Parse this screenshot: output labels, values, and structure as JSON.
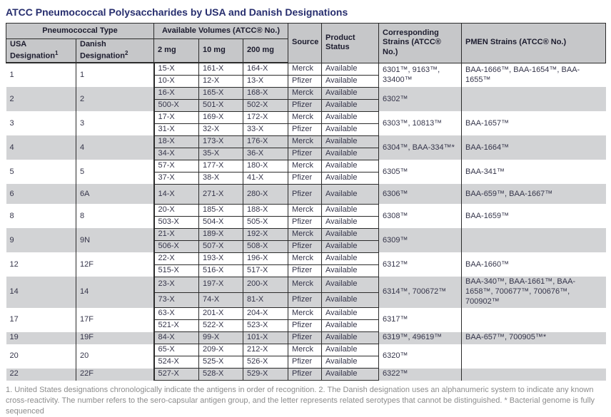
{
  "title": "ATCC Pneumococcal Polysaccharides by USA and Danish Designations",
  "header": {
    "pneumococcal_type": "Pneumococcal Type",
    "available_volumes": "Available Volumes (ATCC® No.)",
    "usa_designation": "USA Designation",
    "usa_designation_sup": "1",
    "danish_designation": "Danish Designation",
    "danish_designation_sup": "2",
    "vol_2mg": "2 mg",
    "vol_10mg": "10 mg",
    "vol_200mg": "200 mg",
    "source": "Source",
    "product_status": "Product Status",
    "corresponding_strains": "Corresponding Strains (ATCC® No.)",
    "pmen_strains": "PMEN Strains (ATCC® No.)"
  },
  "groups": [
    {
      "usa": "1",
      "danish": "1",
      "strains": "6301™, 9163™, 33400™",
      "pmen": "BAA-1666™, BAA-1654™, BAA-1655™",
      "rows": [
        {
          "v2": "15-X",
          "v10": "161-X",
          "v200": "164-X",
          "source": "Merck",
          "status": "Available"
        },
        {
          "v2": "10-X",
          "v10": "12-X",
          "v200": "13-X",
          "source": "Pfizer",
          "status": "Available"
        }
      ]
    },
    {
      "usa": "2",
      "danish": "2",
      "strains": "6302™",
      "pmen": "",
      "rows": [
        {
          "v2": "16-X",
          "v10": "165-X",
          "v200": "168-X",
          "source": "Merck",
          "status": "Available"
        },
        {
          "v2": "500-X",
          "v10": "501-X",
          "v200": "502-X",
          "source": "Pfizer",
          "status": "Available"
        }
      ]
    },
    {
      "usa": "3",
      "danish": "3",
      "strains": "6303™, 10813™",
      "pmen": "BAA-1657™",
      "rows": [
        {
          "v2": "17-X",
          "v10": "169-X",
          "v200": "172-X",
          "source": "Merck",
          "status": "Available"
        },
        {
          "v2": "31-X",
          "v10": "32-X",
          "v200": "33-X",
          "source": "Pfizer",
          "status": "Available"
        }
      ]
    },
    {
      "usa": "4",
      "danish": "4",
      "strains": "6304™, BAA-334™*",
      "pmen": "BAA-1664™",
      "rows": [
        {
          "v2": "18-X",
          "v10": "173-X",
          "v200": "176-X",
          "source": "Merck",
          "status": "Available"
        },
        {
          "v2": "34-X",
          "v10": "35-X",
          "v200": "36-X",
          "source": "Pfizer",
          "status": "Available"
        }
      ]
    },
    {
      "usa": "5",
      "danish": "5",
      "strains": "6305™",
      "pmen": "BAA-341™",
      "rows": [
        {
          "v2": "57-X",
          "v10": "177-X",
          "v200": "180-X",
          "source": "Merck",
          "status": "Available"
        },
        {
          "v2": "37-X",
          "v10": "38-X",
          "v200": "41-X",
          "source": "Pfizer",
          "status": "Available"
        }
      ]
    },
    {
      "usa": "6",
      "danish": "6A",
      "strains": "6306™",
      "pmen": "BAA-659™, BAA-1667™",
      "rows": [
        {
          "v2": "14-X",
          "v10": "271-X",
          "v200": "280-X",
          "source": "Pfizer",
          "status": "Available"
        }
      ]
    },
    {
      "usa": "8",
      "danish": "8",
      "strains": "6308™",
      "pmen": "BAA-1659™",
      "rows": [
        {
          "v2": "20-X",
          "v10": "185-X",
          "v200": "188-X",
          "source": "Merck",
          "status": "Available"
        },
        {
          "v2": "503-X",
          "v10": "504-X",
          "v200": "505-X",
          "source": "Pfizer",
          "status": "Available"
        }
      ]
    },
    {
      "usa": "9",
      "danish": "9N",
      "strains": "6309™",
      "pmen": "",
      "rows": [
        {
          "v2": "21-X",
          "v10": "189-X",
          "v200": "192-X",
          "source": "Merck",
          "status": "Available"
        },
        {
          "v2": "506-X",
          "v10": "507-X",
          "v200": "508-X",
          "source": "Pfizer",
          "status": "Available"
        }
      ]
    },
    {
      "usa": "12",
      "danish": "12F",
      "strains": "6312™",
      "pmen": "BAA-1660™",
      "rows": [
        {
          "v2": "22-X",
          "v10": "193-X",
          "v200": "196-X",
          "source": "Merck",
          "status": "Available"
        },
        {
          "v2": "515-X",
          "v10": "516-X",
          "v200": "517-X",
          "source": "Pfizer",
          "status": "Available"
        }
      ]
    },
    {
      "usa": "14",
      "danish": "14",
      "strains": "6314™, 700672™",
      "pmen": "BAA-340™, BAA-1661™, BAA-1658™, 700677™, 700676™, 700902™",
      "rows": [
        {
          "v2": "23-X",
          "v10": "197-X",
          "v200": "200-X",
          "source": "Merck",
          "status": "Available"
        },
        {
          "v2": "73-X",
          "v10": "74-X",
          "v200": "81-X",
          "source": "Pfizer",
          "status": "Available"
        }
      ]
    },
    {
      "usa": "17",
      "danish": "17F",
      "strains": "6317™",
      "pmen": "",
      "rows": [
        {
          "v2": "63-X",
          "v10": "201-X",
          "v200": "204-X",
          "source": "Merck",
          "status": "Available"
        },
        {
          "v2": "521-X",
          "v10": "522-X",
          "v200": "523-X",
          "source": "Pfizer",
          "status": "Available"
        }
      ]
    },
    {
      "usa": "19",
      "danish": "19F",
      "strains": "6319™, 49619™",
      "pmen": "BAA-657™, 700905™*",
      "rows": [
        {
          "v2": "84-X",
          "v10": "99-X",
          "v200": "101-X",
          "source": "Pfizer",
          "status": "Available"
        }
      ]
    },
    {
      "usa": "20",
      "danish": "20",
      "strains": "6320™",
      "pmen": "",
      "rows": [
        {
          "v2": "65-X",
          "v10": "209-X",
          "v200": "212-X",
          "source": "Merck",
          "status": "Available"
        },
        {
          "v2": "524-X",
          "v10": "525-X",
          "v200": "526-X",
          "source": "Pfizer",
          "status": "Available"
        }
      ]
    },
    {
      "usa": "22",
      "danish": "22F",
      "strains": "6322™",
      "pmen": "",
      "rows": [
        {
          "v2": "527-X",
          "v10": "528-X",
          "v200": "529-X",
          "source": "Pfizer",
          "status": "Available"
        }
      ]
    }
  ],
  "footnote": "1. United States designations chronologically indicate the antigens in order of recognition. 2. The Danish designation uses an alphanumeric system to indicate any known cross-reactivity. The number refers to the sero-capsular antigen group, and the letter represents related serotypes that  cannot be distinguished. * Bacterial genome is fully sequenced"
}
